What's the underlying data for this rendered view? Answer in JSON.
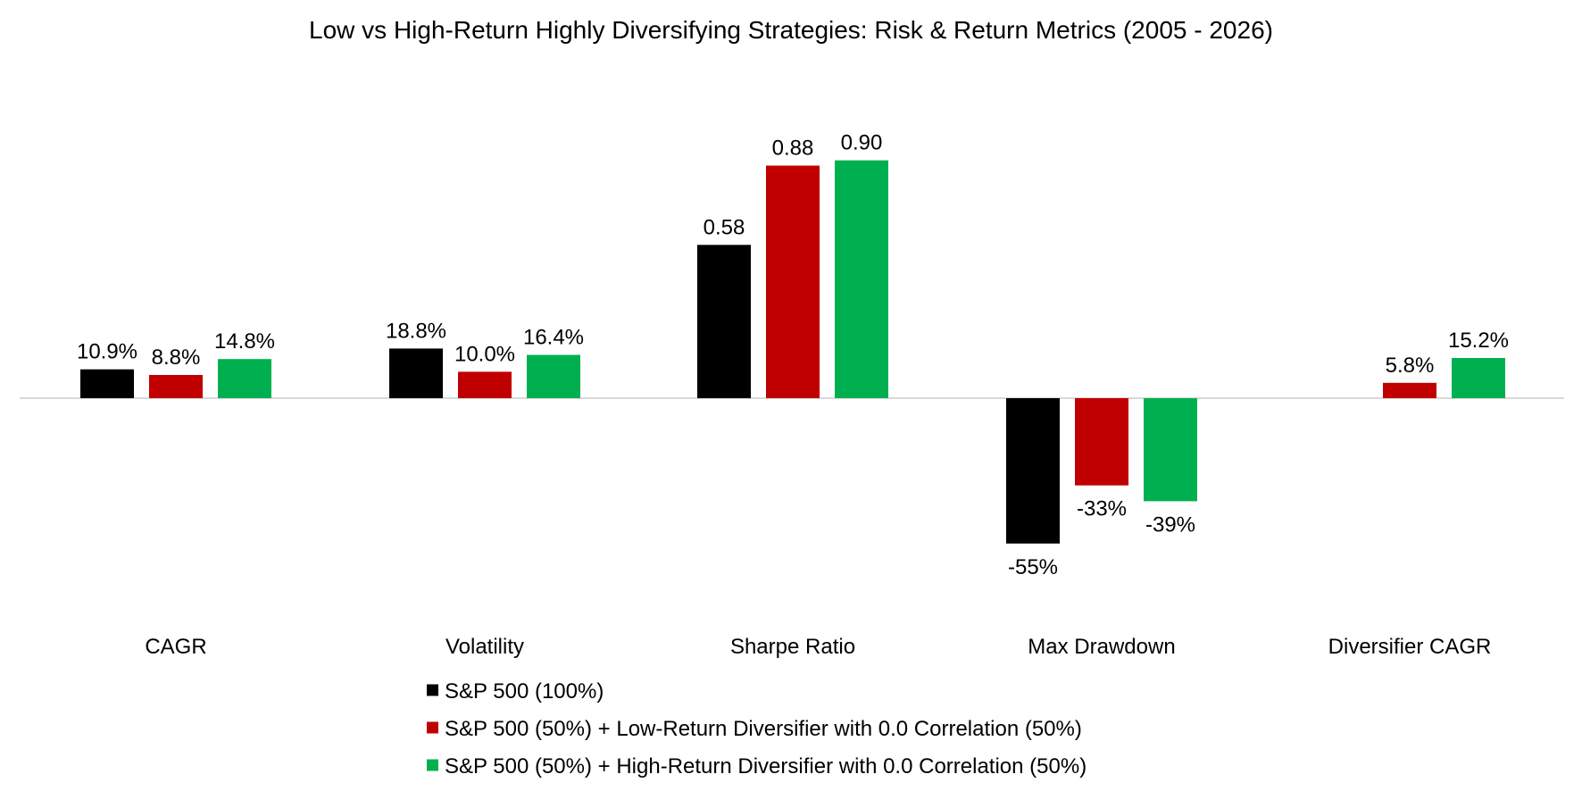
{
  "chart_data": {
    "type": "bar",
    "title": "Low vs High-Return Highly Diversifying Strategies: Risk & Return Metrics (2005 - 2026)",
    "xlabel": "",
    "ylabel": "",
    "categories": [
      "CAGR",
      "Volatility",
      "Sharpe Ratio",
      "Max Drawdown",
      "Diversifier CAGR"
    ],
    "series": [
      {
        "name": "S&P 500 (100%)",
        "color": "#000000",
        "values": [
          0.109,
          0.188,
          0.58,
          -0.55,
          null
        ],
        "labels": [
          "10.9%",
          "18.8%",
          "0.58",
          "-55%",
          ""
        ]
      },
      {
        "name": "S&P 500 (50%) + Low-Return Diversifier with 0.0 Correlation (50%)",
        "color": "#C00000",
        "values": [
          0.088,
          0.1,
          0.88,
          -0.33,
          0.058
        ],
        "labels": [
          "8.8%",
          "10.0%",
          "0.88",
          "-33%",
          "5.8%"
        ]
      },
      {
        "name": "S&P 500 (50%) + High-Return Diversifier with 0.0 Correlation (50%)",
        "color": "#00B050",
        "values": [
          0.148,
          0.164,
          0.9,
          -0.39,
          0.152
        ],
        "labels": [
          "14.8%",
          "16.4%",
          "0.90",
          "-39%",
          "15.2%"
        ]
      }
    ],
    "ylim": [
      -0.55,
      0.9
    ],
    "grid": false,
    "legend_position": "bottom"
  }
}
